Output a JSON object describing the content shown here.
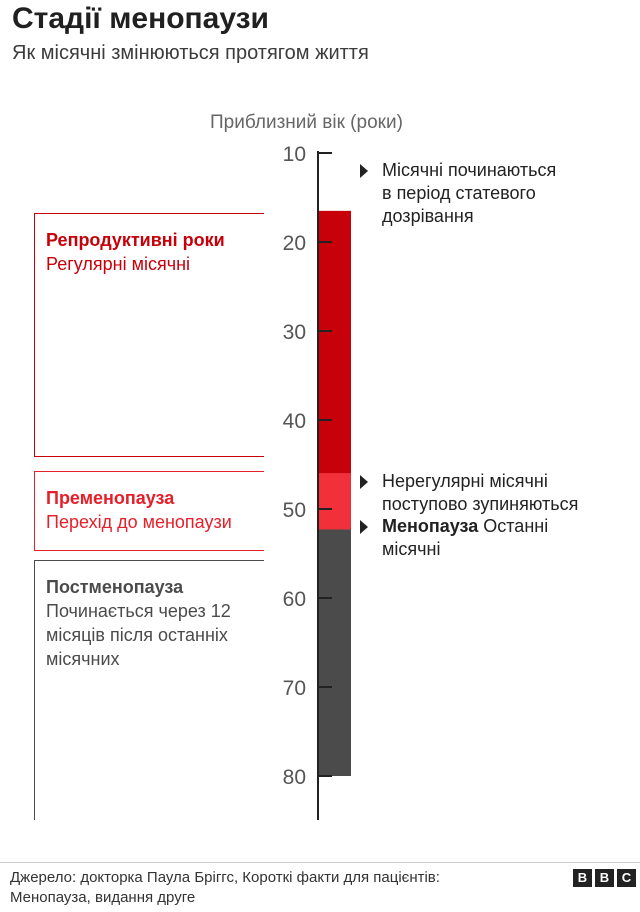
{
  "header": {
    "title": "Стадії менопаузи",
    "subtitle": "Як місячні змінюються протягом життя"
  },
  "chart_data": {
    "type": "bar",
    "orientation": "vertical-stacked-timeline",
    "ylabel": "Приблизний вік (роки)",
    "ylim": [
      10,
      84
    ],
    "yticks": [
      "10",
      "20",
      "30",
      "40",
      "50",
      "60",
      "70",
      "80"
    ],
    "ytick_values": [
      10,
      20,
      30,
      40,
      50,
      60,
      70,
      80
    ],
    "segments": [
      {
        "name": "Репродуктивні роки",
        "start": 16.5,
        "end": 46,
        "color": "#c8000a"
      },
      {
        "name": "Пременопауза",
        "start": 46,
        "end": 52.3,
        "color": "#f2303a"
      },
      {
        "name": "Постменопауза",
        "start": 52.3,
        "end": 80,
        "color": "#4b4b4b"
      }
    ],
    "annotations": [
      {
        "age": 12,
        "text_lines": [
          "Місячні починаються",
          "в період статевого",
          "дозрівання"
        ]
      },
      {
        "age": 47,
        "text_lines": [
          "Нерегулярні місячні",
          "поступово зупиняються"
        ]
      },
      {
        "age": 52,
        "bold": "Менопауза",
        "text_lines": [
          "Останні",
          "місячні"
        ]
      }
    ],
    "stages": [
      {
        "title": "Репродуктивні роки",
        "desc_lines": [
          "Регулярні місячні"
        ],
        "color": "#c8000a"
      },
      {
        "title": "Пременопауза",
        "desc_lines": [
          "Перехід до менопаузи"
        ],
        "color": "#e5202a"
      },
      {
        "title": "Постменопауза",
        "desc_lines": [
          "Починається через 12",
          "місяців після останніх",
          "місячних"
        ],
        "color": "#4b4b4b"
      }
    ]
  },
  "footer": {
    "source_line1": "Джерело: докторка Паула Бріггс, Короткі факти для пацієнтів:",
    "source_line2": "Менопауза, видання друге",
    "logo": [
      "B",
      "B",
      "C"
    ]
  }
}
